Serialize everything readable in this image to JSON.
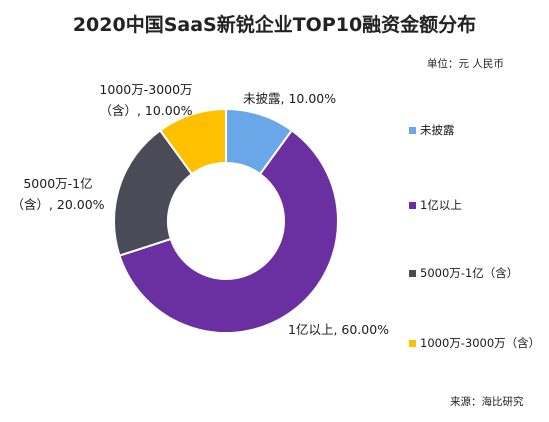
{
  "header": {
    "title": "2020中国SaaS新锐企业TOP10融资金额分布",
    "unit": "单位：元 人民币"
  },
  "footer": {
    "source": "来源：海比研究"
  },
  "chart_data": {
    "type": "pie",
    "title": "2020中国SaaS新锐企业TOP10融资金额分布",
    "donut": true,
    "categories": [
      "未披露",
      "1亿以上",
      "5000万-1亿（含）",
      "1000万-3000万（含）"
    ],
    "values": [
      10.0,
      60.0,
      20.0,
      10.0
    ],
    "colors": [
      "#6aa7e8",
      "#6a2fa0",
      "#4b4a57",
      "#ffc000"
    ],
    "data_labels": [
      [
        "未披露, 10.00%"
      ],
      [
        "1亿以上, 60.00%"
      ],
      [
        "5000万-1亿",
        "（含）, 20.00%"
      ],
      [
        "1000万-3000万",
        "（含）, 10.00%"
      ]
    ],
    "legend": {
      "position": "right",
      "entries": [
        "未披露",
        "1亿以上",
        "5000万-1亿（含）",
        "1000万-3000万（含）"
      ]
    }
  }
}
